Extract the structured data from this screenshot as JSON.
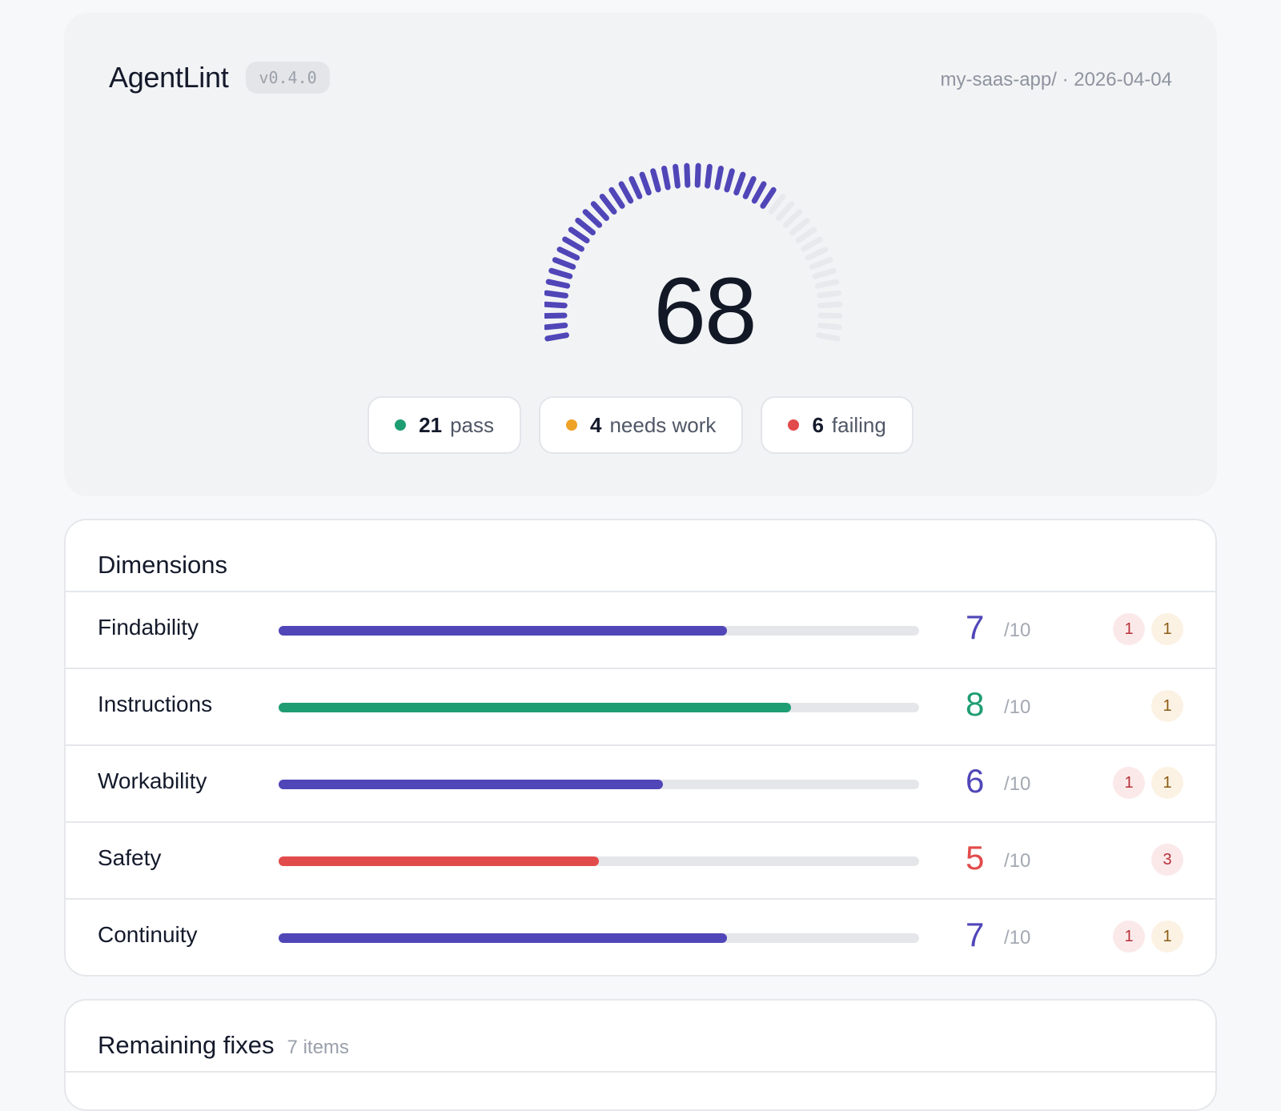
{
  "header": {
    "app_name": "AgentLint",
    "version": "v0.4.0",
    "meta": "my-saas-app/ · 2026-04-04"
  },
  "gauge": {
    "score": "68",
    "fraction": 0.68,
    "active_color": "#5046b8",
    "inactive_color": "#e8e9ec"
  },
  "summary": [
    {
      "count": "21",
      "label": "pass",
      "color": "#1f9d72"
    },
    {
      "count": "4",
      "label": "needs work",
      "color": "#eea326"
    },
    {
      "count": "6",
      "label": "failing",
      "color": "#e24b4b"
    }
  ],
  "dimensions": {
    "title": "Dimensions",
    "denominator": "/10",
    "rows": [
      {
        "name": "Findability",
        "score": "7",
        "fraction": 0.7,
        "color": "#5046b8",
        "red_badge": "1",
        "amber_badge": "1"
      },
      {
        "name": "Instructions",
        "score": "8",
        "fraction": 0.8,
        "color": "#1f9d72",
        "red_badge": "",
        "amber_badge": "1"
      },
      {
        "name": "Workability",
        "score": "6",
        "fraction": 0.6,
        "color": "#5046b8",
        "red_badge": "1",
        "amber_badge": "1"
      },
      {
        "name": "Safety",
        "score": "5",
        "fraction": 0.5,
        "color": "#e24b4b",
        "red_badge": "3",
        "amber_badge": ""
      },
      {
        "name": "Continuity",
        "score": "7",
        "fraction": 0.7,
        "color": "#5046b8",
        "red_badge": "1",
        "amber_badge": "1"
      }
    ]
  },
  "fixes": {
    "title": "Remaining fixes",
    "count_label": "7 items"
  }
}
